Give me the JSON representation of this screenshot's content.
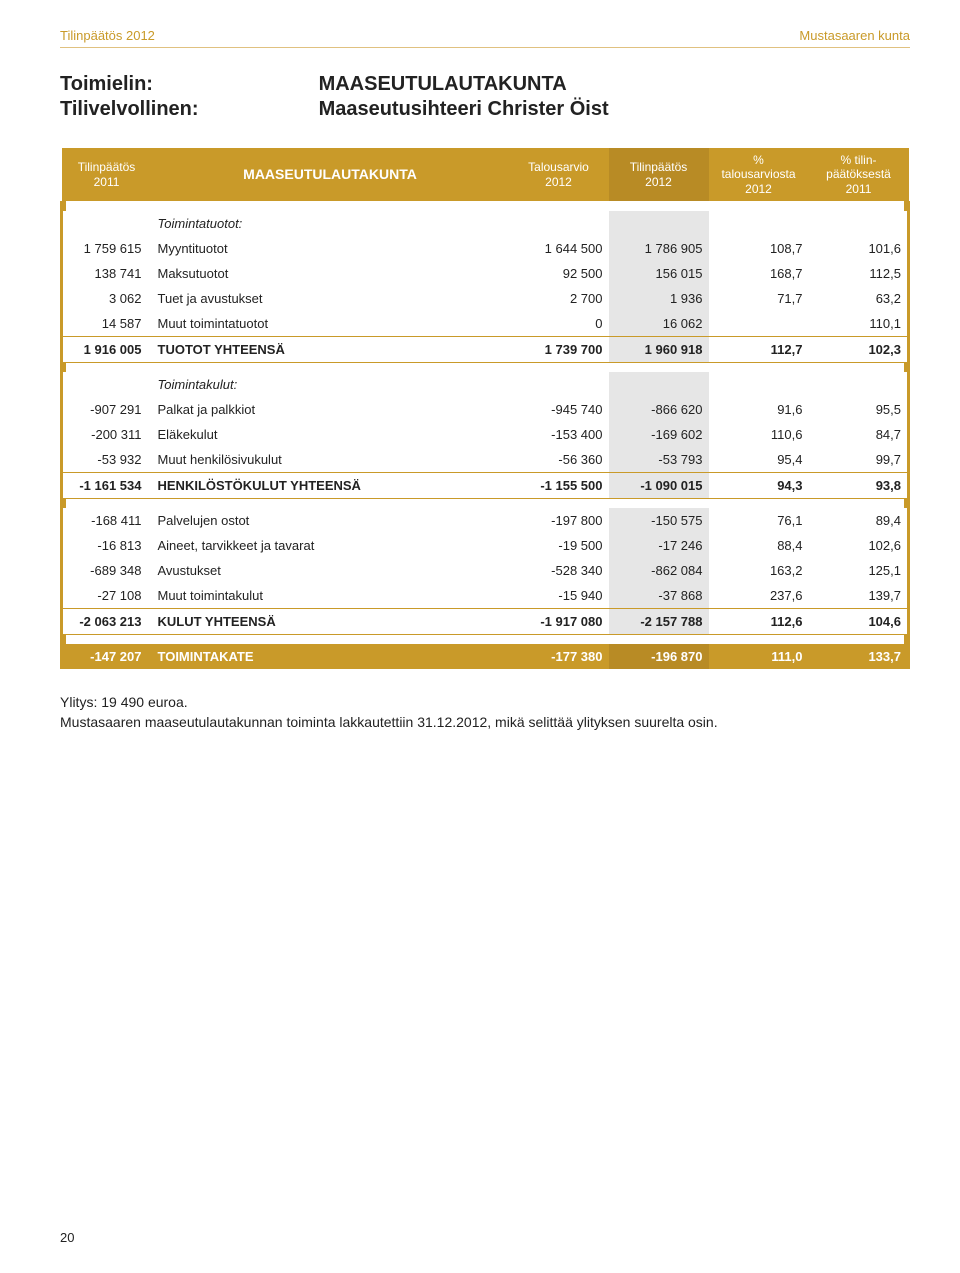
{
  "header": {
    "left": "Tilinpäätös 2012",
    "right": "Mustasaaren kunta"
  },
  "titleblock": {
    "label1": "Toimielin:",
    "label2": "Tilivelvollinen:",
    "value1": "MAASEUTULAUTAKUNTA",
    "value2": "Maaseutusihteeri Christer Öist"
  },
  "cols": {
    "c1a": "Tilinpäätös",
    "c1b": "2011",
    "c2": "MAASEUTULAUTAKUNTA",
    "c3a": "Talousarvio",
    "c3b": "2012",
    "c4a": "Tilinpäätös",
    "c4b": "2012",
    "c5a": "% talousarviosta",
    "c5b": "2012",
    "c6a": "% tilin-",
    "c6b": "päätöksestä",
    "c6c": "2011"
  },
  "s1": {
    "h": "Toimintatuotot:",
    "r": [
      {
        "c1": "1 759 615",
        "c2": "Myyntituotot",
        "c3": "1 644 500",
        "c4": "1 786 905",
        "c5": "108,7",
        "c6": "101,6"
      },
      {
        "c1": "138 741",
        "c2": "Maksutuotot",
        "c3": "92 500",
        "c4": "156 015",
        "c5": "168,7",
        "c6": "112,5"
      },
      {
        "c1": "3 062",
        "c2": "Tuet ja avustukset",
        "c3": "2 700",
        "c4": "1 936",
        "c5": "71,7",
        "c6": "63,2"
      },
      {
        "c1": "14 587",
        "c2": "Muut toimintatuotot",
        "c3": "0",
        "c4": "16 062",
        "c5": "",
        "c6": "110,1"
      }
    ],
    "t": {
      "c1": "1 916 005",
      "c2": "TUOTOT YHTEENSÄ",
      "c3": "1 739 700",
      "c4": "1 960 918",
      "c5": "112,7",
      "c6": "102,3"
    }
  },
  "s2": {
    "h": "Toimintakulut:",
    "r": [
      {
        "c1": "-907 291",
        "c2": "Palkat ja palkkiot",
        "c3": "-945 740",
        "c4": "-866 620",
        "c5": "91,6",
        "c6": "95,5"
      },
      {
        "c1": "-200 311",
        "c2": "Eläkekulut",
        "c3": "-153 400",
        "c4": "-169 602",
        "c5": "110,6",
        "c6": "84,7"
      },
      {
        "c1": "-53 932",
        "c2": "Muut henkilösivukulut",
        "c3": "-56 360",
        "c4": "-53 793",
        "c5": "95,4",
        "c6": "99,7"
      }
    ],
    "t": {
      "c1": "-1 161 534",
      "c2": "HENKILÖSTÖKULUT YHTEENSÄ",
      "c3": "-1 155 500",
      "c4": "-1 090 015",
      "c5": "94,3",
      "c6": "93,8"
    }
  },
  "s3": {
    "r": [
      {
        "c1": "-168 411",
        "c2": "Palvelujen ostot",
        "c3": "-197 800",
        "c4": "-150 575",
        "c5": "76,1",
        "c6": "89,4"
      },
      {
        "c1": "-16 813",
        "c2": "Aineet, tarvikkeet ja tavarat",
        "c3": "-19 500",
        "c4": "-17 246",
        "c5": "88,4",
        "c6": "102,6"
      },
      {
        "c1": "-689 348",
        "c2": "Avustukset",
        "c3": "-528 340",
        "c4": "-862 084",
        "c5": "163,2",
        "c6": "125,1"
      },
      {
        "c1": "-27 108",
        "c2": "Muut toimintakulut",
        "c3": "-15 940",
        "c4": "-37 868",
        "c5": "237,6",
        "c6": "139,7"
      }
    ],
    "t": {
      "c1": "-2 063 213",
      "c2": "KULUT YHTEENSÄ",
      "c3": "-1 917 080",
      "c4": "-2 157 788",
      "c5": "112,6",
      "c6": "104,6"
    }
  },
  "final": {
    "c1": "-147 207",
    "c2": "TOIMINTAKATE",
    "c3": "-177 380",
    "c4": "-196 870",
    "c5": "111,0",
    "c6": "133,7"
  },
  "footnote": {
    "l1": "Ylitys: 19 490 euroa.",
    "l2": "Mustasaaren maaseutulautakunnan toiminta lakkautettiin 31.12.2012, mikä selittää ylityksen suurelta osin."
  },
  "pagenum": "20"
}
